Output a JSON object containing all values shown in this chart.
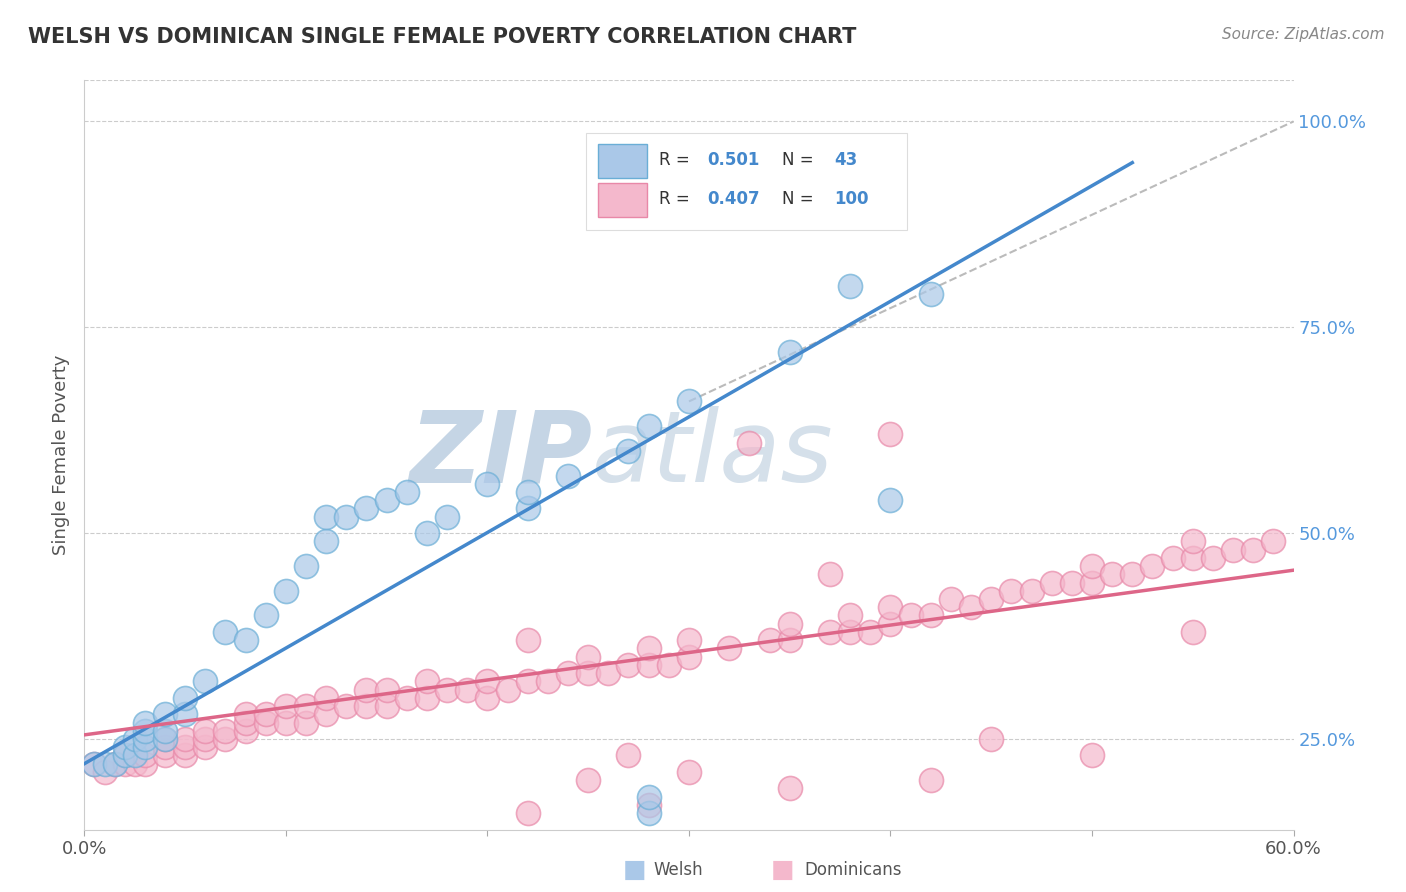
{
  "title": "WELSH VS DOMINICAN SINGLE FEMALE POVERTY CORRELATION CHART",
  "source": "Source: ZipAtlas.com",
  "ylabel": "Single Female Poverty",
  "xlim": [
    0.0,
    0.6
  ],
  "ylim": [
    0.14,
    1.05
  ],
  "xtick_positions": [
    0.0,
    0.1,
    0.2,
    0.3,
    0.4,
    0.5,
    0.6
  ],
  "xtick_labels": [
    "0.0%",
    "",
    "",
    "",
    "",
    "",
    "60.0%"
  ],
  "yticks_right": [
    0.25,
    0.5,
    0.75,
    1.0
  ],
  "ytick_labels_right": [
    "25.0%",
    "50.0%",
    "75.0%",
    "100.0%"
  ],
  "welsh_R": 0.501,
  "welsh_N": 43,
  "dominican_R": 0.407,
  "dominican_N": 100,
  "welsh_color": "#aac8e8",
  "welsh_edge_color": "#6aaed6",
  "dominican_color": "#f4b8cc",
  "dominican_edge_color": "#e888a8",
  "welsh_line_color": "#4488cc",
  "dominican_line_color": "#dd6688",
  "diag_line_color": "#bbbbbb",
  "background_color": "#ffffff",
  "grid_color": "#cccccc",
  "title_color": "#333333",
  "watermark_text": "ZIPatlas",
  "watermark_color": "#ccd8e8",
  "legend_welsh_patch": "#aac8e8",
  "legend_dominican_patch": "#f4b8cc",
  "welsh_scatter_x": [
    0.005,
    0.01,
    0.015,
    0.02,
    0.02,
    0.025,
    0.025,
    0.03,
    0.03,
    0.03,
    0.03,
    0.04,
    0.04,
    0.04,
    0.05,
    0.05,
    0.06,
    0.07,
    0.08,
    0.09,
    0.1,
    0.11,
    0.12,
    0.12,
    0.13,
    0.14,
    0.15,
    0.16,
    0.17,
    0.18,
    0.2,
    0.22,
    0.24,
    0.27,
    0.28,
    0.3,
    0.35,
    0.38,
    0.4,
    0.42,
    0.22,
    0.28,
    0.28
  ],
  "welsh_scatter_y": [
    0.22,
    0.22,
    0.22,
    0.23,
    0.24,
    0.23,
    0.25,
    0.24,
    0.25,
    0.26,
    0.27,
    0.25,
    0.26,
    0.28,
    0.28,
    0.3,
    0.32,
    0.38,
    0.37,
    0.4,
    0.43,
    0.46,
    0.49,
    0.52,
    0.52,
    0.53,
    0.54,
    0.55,
    0.5,
    0.52,
    0.56,
    0.53,
    0.57,
    0.6,
    0.63,
    0.66,
    0.72,
    0.8,
    0.54,
    0.79,
    0.55,
    0.16,
    0.18
  ],
  "dominican_scatter_x": [
    0.005,
    0.01,
    0.015,
    0.02,
    0.02,
    0.025,
    0.03,
    0.03,
    0.04,
    0.04,
    0.04,
    0.05,
    0.05,
    0.05,
    0.06,
    0.06,
    0.06,
    0.07,
    0.07,
    0.08,
    0.08,
    0.08,
    0.09,
    0.09,
    0.1,
    0.1,
    0.11,
    0.11,
    0.12,
    0.12,
    0.13,
    0.14,
    0.14,
    0.15,
    0.15,
    0.16,
    0.17,
    0.17,
    0.18,
    0.19,
    0.2,
    0.2,
    0.21,
    0.22,
    0.23,
    0.24,
    0.25,
    0.25,
    0.26,
    0.27,
    0.28,
    0.28,
    0.29,
    0.3,
    0.3,
    0.32,
    0.34,
    0.35,
    0.35,
    0.37,
    0.38,
    0.38,
    0.39,
    0.4,
    0.4,
    0.41,
    0.42,
    0.43,
    0.44,
    0.45,
    0.46,
    0.47,
    0.48,
    0.49,
    0.5,
    0.5,
    0.51,
    0.52,
    0.53,
    0.54,
    0.55,
    0.55,
    0.56,
    0.57,
    0.58,
    0.59,
    0.22,
    0.25,
    0.27,
    0.3,
    0.33,
    0.37,
    0.4,
    0.45,
    0.5,
    0.55,
    0.22,
    0.28,
    0.35,
    0.42
  ],
  "dominican_scatter_y": [
    0.22,
    0.21,
    0.22,
    0.22,
    0.23,
    0.22,
    0.22,
    0.23,
    0.23,
    0.24,
    0.25,
    0.23,
    0.24,
    0.25,
    0.24,
    0.25,
    0.26,
    0.25,
    0.26,
    0.26,
    0.27,
    0.28,
    0.27,
    0.28,
    0.27,
    0.29,
    0.27,
    0.29,
    0.28,
    0.3,
    0.29,
    0.29,
    0.31,
    0.29,
    0.31,
    0.3,
    0.3,
    0.32,
    0.31,
    0.31,
    0.3,
    0.32,
    0.31,
    0.32,
    0.32,
    0.33,
    0.33,
    0.35,
    0.33,
    0.34,
    0.34,
    0.36,
    0.34,
    0.35,
    0.37,
    0.36,
    0.37,
    0.37,
    0.39,
    0.38,
    0.38,
    0.4,
    0.38,
    0.39,
    0.41,
    0.4,
    0.4,
    0.42,
    0.41,
    0.42,
    0.43,
    0.43,
    0.44,
    0.44,
    0.44,
    0.46,
    0.45,
    0.45,
    0.46,
    0.47,
    0.47,
    0.49,
    0.47,
    0.48,
    0.48,
    0.49,
    0.37,
    0.2,
    0.23,
    0.21,
    0.61,
    0.45,
    0.62,
    0.25,
    0.23,
    0.38,
    0.16,
    0.17,
    0.19,
    0.2
  ],
  "welsh_line_x": [
    0.0,
    0.52
  ],
  "welsh_line_y": [
    0.22,
    0.95
  ],
  "dominican_line_x": [
    0.0,
    0.6
  ],
  "dominican_line_y": [
    0.255,
    0.455
  ],
  "diag_line_x": [
    0.3,
    0.6
  ],
  "diag_line_y": [
    0.66,
    1.0
  ]
}
